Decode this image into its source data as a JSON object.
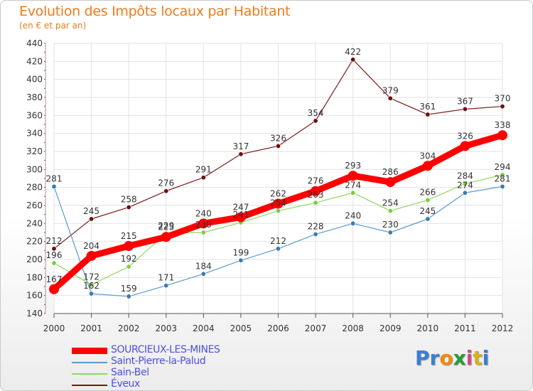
{
  "header": {
    "title": "Evolution des Impôts locaux par Habitant",
    "subtitle": "(en € et par an)"
  },
  "brand": {
    "letters": [
      "P",
      "r",
      "o",
      "x",
      "i",
      "t",
      "i"
    ],
    "colors": [
      "#3a7fd0",
      "#3a7fd0",
      "#f08a10",
      "#2a9a3a",
      "#d04a8a",
      "#d8b020",
      "#3a7fd0"
    ]
  },
  "chart_data": {
    "type": "line",
    "title": "Evolution des Impôts locaux par Habitant",
    "subtitle": "(en € et par an)",
    "x": [
      "2000",
      "2001",
      "2002",
      "2003",
      "2004",
      "2005",
      "2006",
      "2007",
      "2008",
      "2009",
      "2010",
      "2011",
      "2012"
    ],
    "ylim": [
      140,
      440
    ],
    "yticks": [
      140,
      160,
      180,
      200,
      220,
      240,
      260,
      280,
      300,
      320,
      340,
      360,
      380,
      400,
      420,
      440
    ],
    "grid": true,
    "legend_position": "bottom-left",
    "series": [
      {
        "name": "Éveux",
        "color": "#7a1a1a",
        "values": [
          212,
          245,
          258,
          276,
          291,
          317,
          326,
          354,
          422,
          379,
          361,
          367,
          370
        ]
      },
      {
        "name": "Sain-Bel",
        "color": "#90d860",
        "values": [
          196,
          172,
          192,
          229,
          230,
          241,
          254,
          263,
          274,
          254,
          266,
          284,
          294
        ]
      },
      {
        "name": "Saint-Pierre-la-Palud",
        "color": "#5a9ad0",
        "values": [
          281,
          162,
          159,
          171,
          184,
          199,
          212,
          228,
          240,
          230,
          245,
          274,
          281
        ]
      },
      {
        "name": "SOURCIEUX-LES-MINES",
        "color": "#ff0000",
        "values": [
          167,
          204,
          215,
          225,
          240,
          247,
          262,
          276,
          293,
          286,
          304,
          326,
          338
        ]
      }
    ],
    "legend_order": [
      "SOURCIEUX-LES-MINES",
      "Saint-Pierre-la-Palud",
      "Sain-Bel",
      "Éveux"
    ]
  }
}
